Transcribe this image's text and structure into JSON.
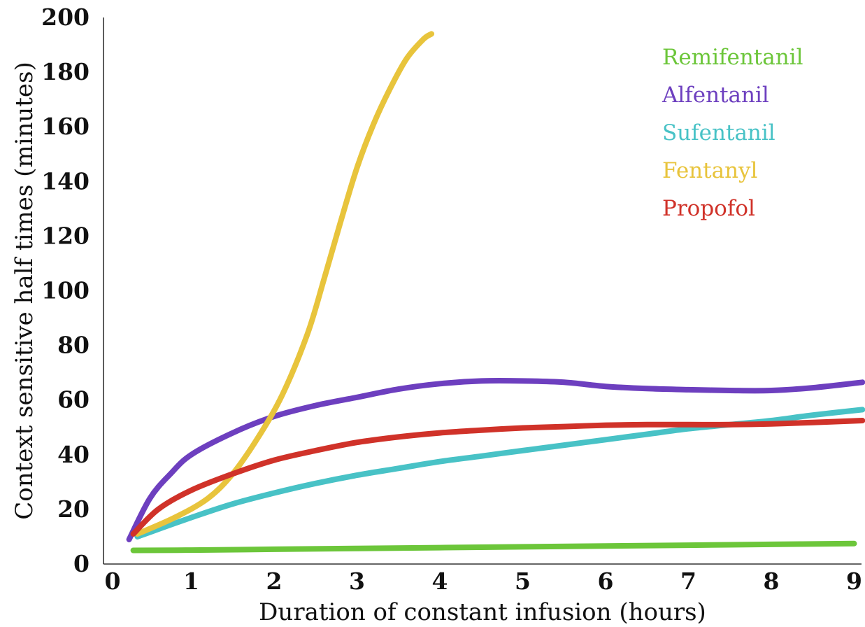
{
  "chart_data": {
    "type": "line",
    "title": "",
    "xlabel": "Duration of constant infusion (hours)",
    "ylabel": "Context sensitive half times (minutes)",
    "xlim": [
      0,
      9.1
    ],
    "ylim": [
      0,
      200
    ],
    "xticks": [
      0,
      1,
      2,
      3,
      4,
      5,
      6,
      7,
      8,
      9
    ],
    "yticks": [
      0,
      20,
      40,
      60,
      80,
      100,
      120,
      140,
      160,
      180,
      200
    ],
    "grid": false,
    "legend_position": "top-right",
    "series": [
      {
        "name": "Remifentanil",
        "color": "#6cc63a",
        "points": [
          [
            0.3,
            5
          ],
          [
            1,
            5.1
          ],
          [
            2,
            5.4
          ],
          [
            3,
            5.7
          ],
          [
            4,
            6
          ],
          [
            5,
            6.3
          ],
          [
            6,
            6.6
          ],
          [
            7,
            6.9
          ],
          [
            8,
            7.2
          ],
          [
            9,
            7.5
          ]
        ]
      },
      {
        "name": "Alfentanil",
        "color": "#6d3fbf",
        "points": [
          [
            0.25,
            9
          ],
          [
            0.5,
            24
          ],
          [
            0.75,
            33
          ],
          [
            1,
            40
          ],
          [
            1.5,
            48
          ],
          [
            2,
            54
          ],
          [
            2.5,
            58
          ],
          [
            3,
            61
          ],
          [
            3.5,
            64
          ],
          [
            4,
            66
          ],
          [
            4.5,
            67
          ],
          [
            5,
            67
          ],
          [
            5.5,
            66.5
          ],
          [
            6,
            65
          ],
          [
            6.5,
            64.2
          ],
          [
            7,
            63.8
          ],
          [
            7.5,
            63.5
          ],
          [
            8,
            63.5
          ],
          [
            8.5,
            64.5
          ],
          [
            9.1,
            66.5
          ]
        ]
      },
      {
        "name": "Sufentanil",
        "color": "#48c2c6",
        "points": [
          [
            0.35,
            10
          ],
          [
            1,
            17
          ],
          [
            1.5,
            22
          ],
          [
            2,
            26
          ],
          [
            2.5,
            29.5
          ],
          [
            3,
            32.5
          ],
          [
            3.5,
            35
          ],
          [
            4,
            37.5
          ],
          [
            4.5,
            39.5
          ],
          [
            5,
            41.5
          ],
          [
            5.5,
            43.5
          ],
          [
            6,
            45.5
          ],
          [
            6.5,
            47.5
          ],
          [
            7,
            49.5
          ],
          [
            7.5,
            51
          ],
          [
            8,
            52.5
          ],
          [
            8.5,
            54.5
          ],
          [
            9.1,
            56.5
          ]
        ]
      },
      {
        "name": "Fentanyl",
        "color": "#e8c43c",
        "points": [
          [
            0.35,
            11
          ],
          [
            0.8,
            17
          ],
          [
            1.2,
            24
          ],
          [
            1.5,
            33
          ],
          [
            1.8,
            46
          ],
          [
            2.1,
            62
          ],
          [
            2.4,
            84
          ],
          [
            2.6,
            104
          ],
          [
            2.8,
            125
          ],
          [
            3,
            145
          ],
          [
            3.2,
            161
          ],
          [
            3.4,
            174
          ],
          [
            3.6,
            185
          ],
          [
            3.8,
            192
          ],
          [
            3.9,
            194
          ]
        ]
      },
      {
        "name": "Propofol",
        "color": "#d03229",
        "points": [
          [
            0.3,
            11
          ],
          [
            0.6,
            20
          ],
          [
            1,
            27
          ],
          [
            1.5,
            33
          ],
          [
            2,
            38
          ],
          [
            2.5,
            41.5
          ],
          [
            3,
            44.5
          ],
          [
            3.5,
            46.5
          ],
          [
            4,
            48
          ],
          [
            4.5,
            49
          ],
          [
            5,
            49.8
          ],
          [
            5.5,
            50.3
          ],
          [
            6,
            50.8
          ],
          [
            6.5,
            51
          ],
          [
            7,
            51
          ],
          [
            7.5,
            51
          ],
          [
            8,
            51.3
          ],
          [
            8.5,
            51.8
          ],
          [
            9.1,
            52.5
          ]
        ]
      }
    ]
  }
}
